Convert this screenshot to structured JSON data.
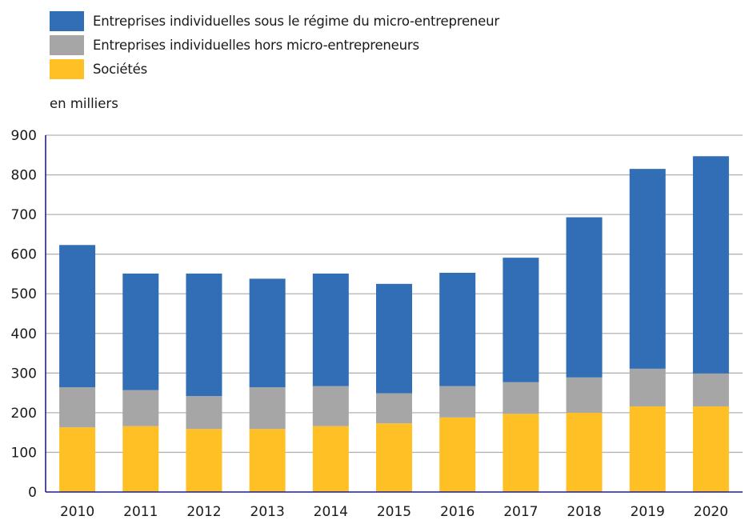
{
  "chart_data": {
    "type": "bar",
    "stacked": true,
    "title": "",
    "unit_label": "en milliers",
    "xlabel": "",
    "ylabel": "",
    "ylim": [
      0,
      900
    ],
    "yticks": [
      0,
      100,
      200,
      300,
      400,
      500,
      600,
      700,
      800,
      900
    ],
    "grid": true,
    "legend_position": "top-left",
    "categories": [
      "2010",
      "2011",
      "2012",
      "2013",
      "2014",
      "2015",
      "2016",
      "2017",
      "2018",
      "2019",
      "2020"
    ],
    "series": [
      {
        "name": "Sociétés",
        "color": "#FFC026",
        "values": [
          163,
          166,
          159,
          159,
          166,
          173,
          188,
          197,
          200,
          216,
          216
        ]
      },
      {
        "name": "Entreprises individuelles hors micro-entrepreneurs",
        "color": "#A6A6A6",
        "values": [
          101,
          91,
          83,
          105,
          101,
          76,
          79,
          80,
          89,
          95,
          83
        ]
      },
      {
        "name": "Entreprises individuelles sous le régime du micro-entrepreneur",
        "color": "#326EB5",
        "values": [
          359,
          294,
          309,
          274,
          284,
          276,
          286,
          314,
          404,
          504,
          548
        ]
      }
    ],
    "totals": [
      623,
      551,
      551,
      538,
      551,
      525,
      553,
      591,
      693,
      815,
      847
    ]
  },
  "legend": [
    {
      "label": "Entreprises individuelles sous le régime du micro-entrepreneur",
      "color": "#326EB5"
    },
    {
      "label": "Entreprises individuelles hors micro-entrepreneurs",
      "color": "#A6A6A6"
    },
    {
      "label": "Sociétés",
      "color": "#FFC026"
    }
  ],
  "colors": {
    "axis": "#1F1F8C",
    "grid": "#B3B3B3"
  }
}
